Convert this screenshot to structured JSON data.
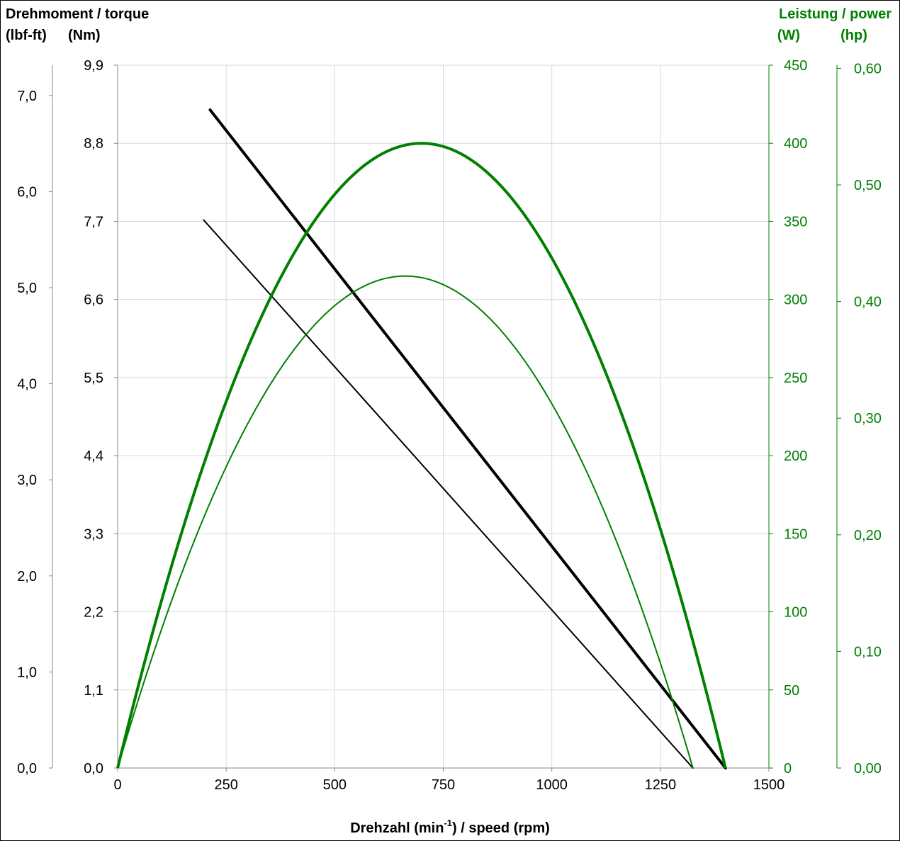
{
  "chart_data": {
    "type": "line",
    "left_title": "Drehmoment / torque",
    "left_units": {
      "lbf_ft": "(lbf-ft)",
      "nm": "(Nm)"
    },
    "right_title": "Leistung / power",
    "right_units": {
      "w": "(W)",
      "hp": "(hp)"
    },
    "xlabel": {
      "pre": "Drehzahl (min",
      "sup": "-1",
      "post": ") / speed (rpm)"
    },
    "xlim": [
      0,
      1500
    ],
    "x_ticks": [
      "0",
      "250",
      "500",
      "750",
      "1000",
      "1250",
      "1500"
    ],
    "nm_lim": [
      0,
      9.9
    ],
    "nm_ticks": [
      "0,0",
      "1,1",
      "2,2",
      "3,3",
      "4,4",
      "5,5",
      "6,6",
      "7,7",
      "8,8",
      "9,9"
    ],
    "lbf_ticks": [
      "0,0",
      "1,0",
      "2,0",
      "3,0",
      "4,0",
      "5,0",
      "6,0",
      "7,0"
    ],
    "w_lim": [
      0,
      450
    ],
    "w_ticks": [
      "0",
      "50",
      "100",
      "150",
      "200",
      "250",
      "300",
      "350",
      "400",
      "450"
    ],
    "hp_ticks": [
      "0,00",
      "0,10",
      "0,20",
      "0,30",
      "0,40",
      "0,50",
      "0,60"
    ],
    "grid": true,
    "colors": {
      "torque": "#000000",
      "power": "#008000",
      "grid": "#d9d9d9"
    },
    "series": [
      {
        "axis": "torque",
        "weight": "bold",
        "points": [
          [
            213,
            9.27
          ],
          [
            1400,
            0
          ]
        ]
      },
      {
        "axis": "torque",
        "weight": "thin",
        "points": [
          [
            198,
            7.72
          ],
          [
            1325,
            0
          ]
        ]
      },
      {
        "axis": "power",
        "weight": "bold",
        "no_load_rpm": 1400,
        "peak_rpm": 700,
        "peak_w": 400
      },
      {
        "axis": "power",
        "weight": "thin",
        "no_load_rpm": 1325,
        "peak_rpm": 662,
        "peak_w": 315
      }
    ]
  }
}
